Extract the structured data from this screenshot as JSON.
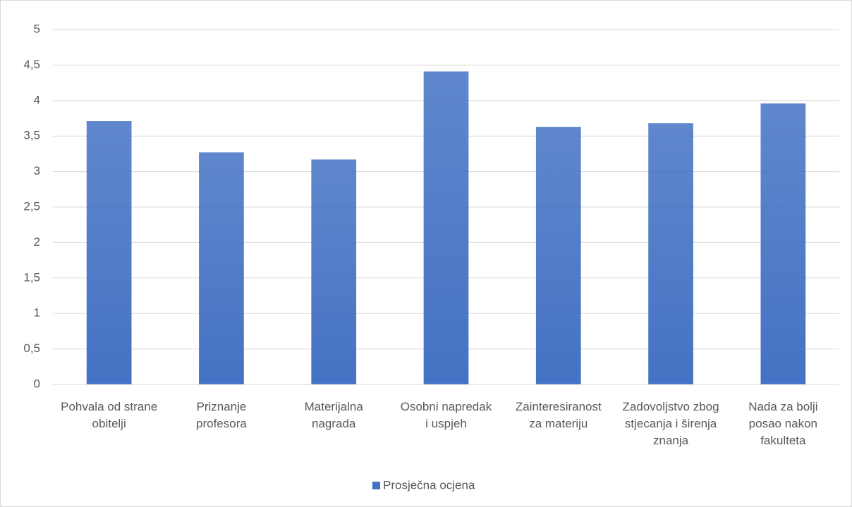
{
  "chart_data": {
    "type": "bar",
    "categories": [
      "Pohvala od strane obitelji",
      "Priznanje profesora",
      "Materijalna nagrada",
      "Osobni napredak i uspjeh",
      "Zainteresiranost za materiju",
      "Zadovoljstvo zbog stjecanja i širenja znanja",
      "Nada za bolji posao nakon fakulteta"
    ],
    "series": [
      {
        "name": "Prosječna ocjena",
        "color": "#4472c4",
        "values": [
          3.71,
          3.27,
          3.17,
          4.41,
          3.63,
          3.68,
          3.96
        ]
      }
    ],
    "ylim": [
      0,
      5
    ],
    "yticks": [
      0,
      {
        "value": 0.5,
        "label": "0,5"
      },
      1,
      {
        "value": 1.5,
        "label": "1,5"
      },
      2,
      {
        "value": 2.5,
        "label": "2,5"
      },
      3,
      {
        "value": 3.5,
        "label": "3,5"
      },
      4,
      {
        "value": 4.5,
        "label": "4,5"
      },
      5
    ],
    "grid": true,
    "legend": "bottom"
  }
}
